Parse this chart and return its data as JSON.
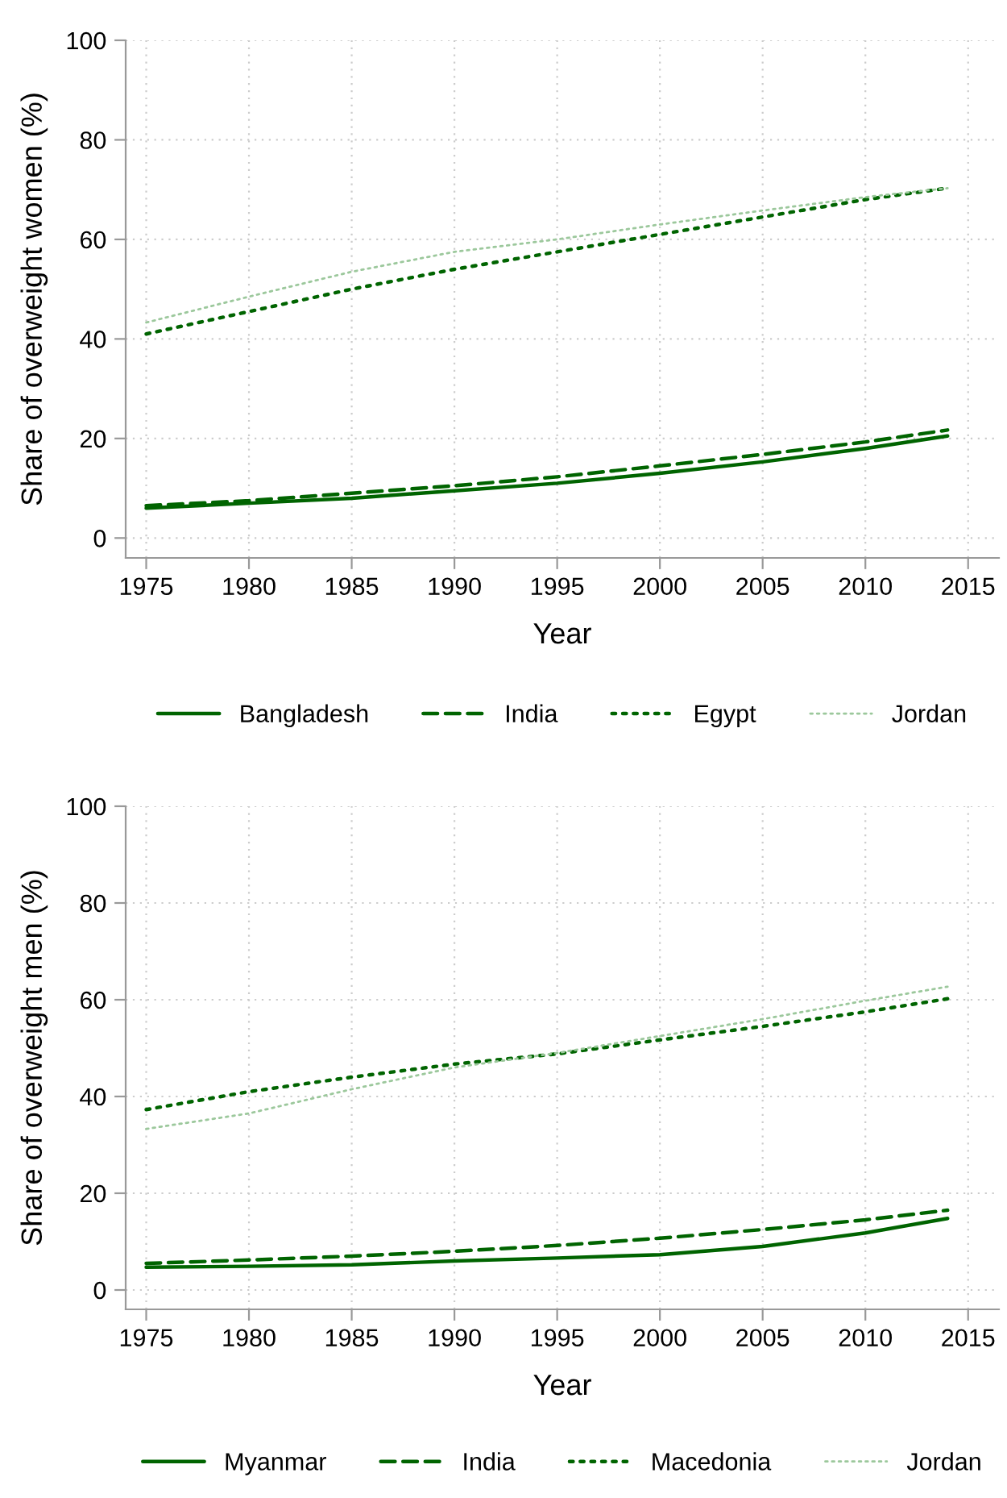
{
  "chart_data": [
    {
      "type": "line",
      "xlabel": "Year",
      "ylabel": "Share of overweight women (%)",
      "x": [
        1975,
        1980,
        1985,
        1990,
        1995,
        2000,
        2005,
        2010,
        2014
      ],
      "xlim": [
        1974,
        2016.5
      ],
      "ylim": [
        -4,
        100
      ],
      "xticks": [
        1975,
        1980,
        1985,
        1990,
        1995,
        2000,
        2005,
        2010,
        2015
      ],
      "yticks": [
        0,
        20,
        40,
        60,
        80,
        100
      ],
      "grid": true,
      "legend": "bottom",
      "series": [
        {
          "name": "Bangladesh",
          "color": "#006400",
          "line_style": "solid",
          "values": [
            6,
            7,
            8,
            9.5,
            11,
            13,
            15.3,
            18,
            20.5
          ]
        },
        {
          "name": "India",
          "color": "#006400",
          "line_style": "dashed",
          "values": [
            6.5,
            7.5,
            9,
            10.5,
            12.3,
            14.5,
            16.8,
            19.3,
            21.7
          ]
        },
        {
          "name": "Egypt",
          "color": "#006400",
          "line_style": "dotted",
          "values": [
            41,
            45.5,
            50,
            54,
            57.5,
            61,
            64.5,
            68,
            70.3
          ]
        },
        {
          "name": "Jordan",
          "color": "#9cc89c",
          "line_style": "dotted",
          "values": [
            43.3,
            48.5,
            53.5,
            57.5,
            60,
            63,
            65.8,
            68.5,
            70.3
          ]
        }
      ]
    },
    {
      "type": "line",
      "xlabel": "Year",
      "ylabel": "Share of overweight men (%)",
      "x": [
        1975,
        1980,
        1985,
        1990,
        1995,
        2000,
        2005,
        2010,
        2014
      ],
      "xlim": [
        1974,
        2016.5
      ],
      "ylim": [
        -4,
        100
      ],
      "xticks": [
        1975,
        1980,
        1985,
        1990,
        1995,
        2000,
        2005,
        2010,
        2015
      ],
      "yticks": [
        0,
        20,
        40,
        60,
        80,
        100
      ],
      "grid": true,
      "legend": "bottom",
      "series": [
        {
          "name": "Myanmar",
          "color": "#006400",
          "line_style": "solid",
          "values": [
            4.7,
            4.9,
            5.2,
            6,
            6.6,
            7.3,
            9,
            11.8,
            14.8
          ]
        },
        {
          "name": "India",
          "color": "#006400",
          "line_style": "dashed",
          "values": [
            5.5,
            6.2,
            7,
            8,
            9.2,
            10.7,
            12.5,
            14.5,
            16.5
          ]
        },
        {
          "name": "Macedonia",
          "color": "#006400",
          "line_style": "dotted",
          "values": [
            37.3,
            41,
            44,
            46.7,
            48.8,
            51.7,
            54.5,
            57.5,
            60.2
          ]
        },
        {
          "name": "Jordan",
          "color": "#9cc89c",
          "line_style": "dotted",
          "values": [
            33.3,
            36.5,
            41.5,
            46,
            49,
            52.5,
            56,
            59.8,
            62.7
          ]
        }
      ]
    }
  ]
}
